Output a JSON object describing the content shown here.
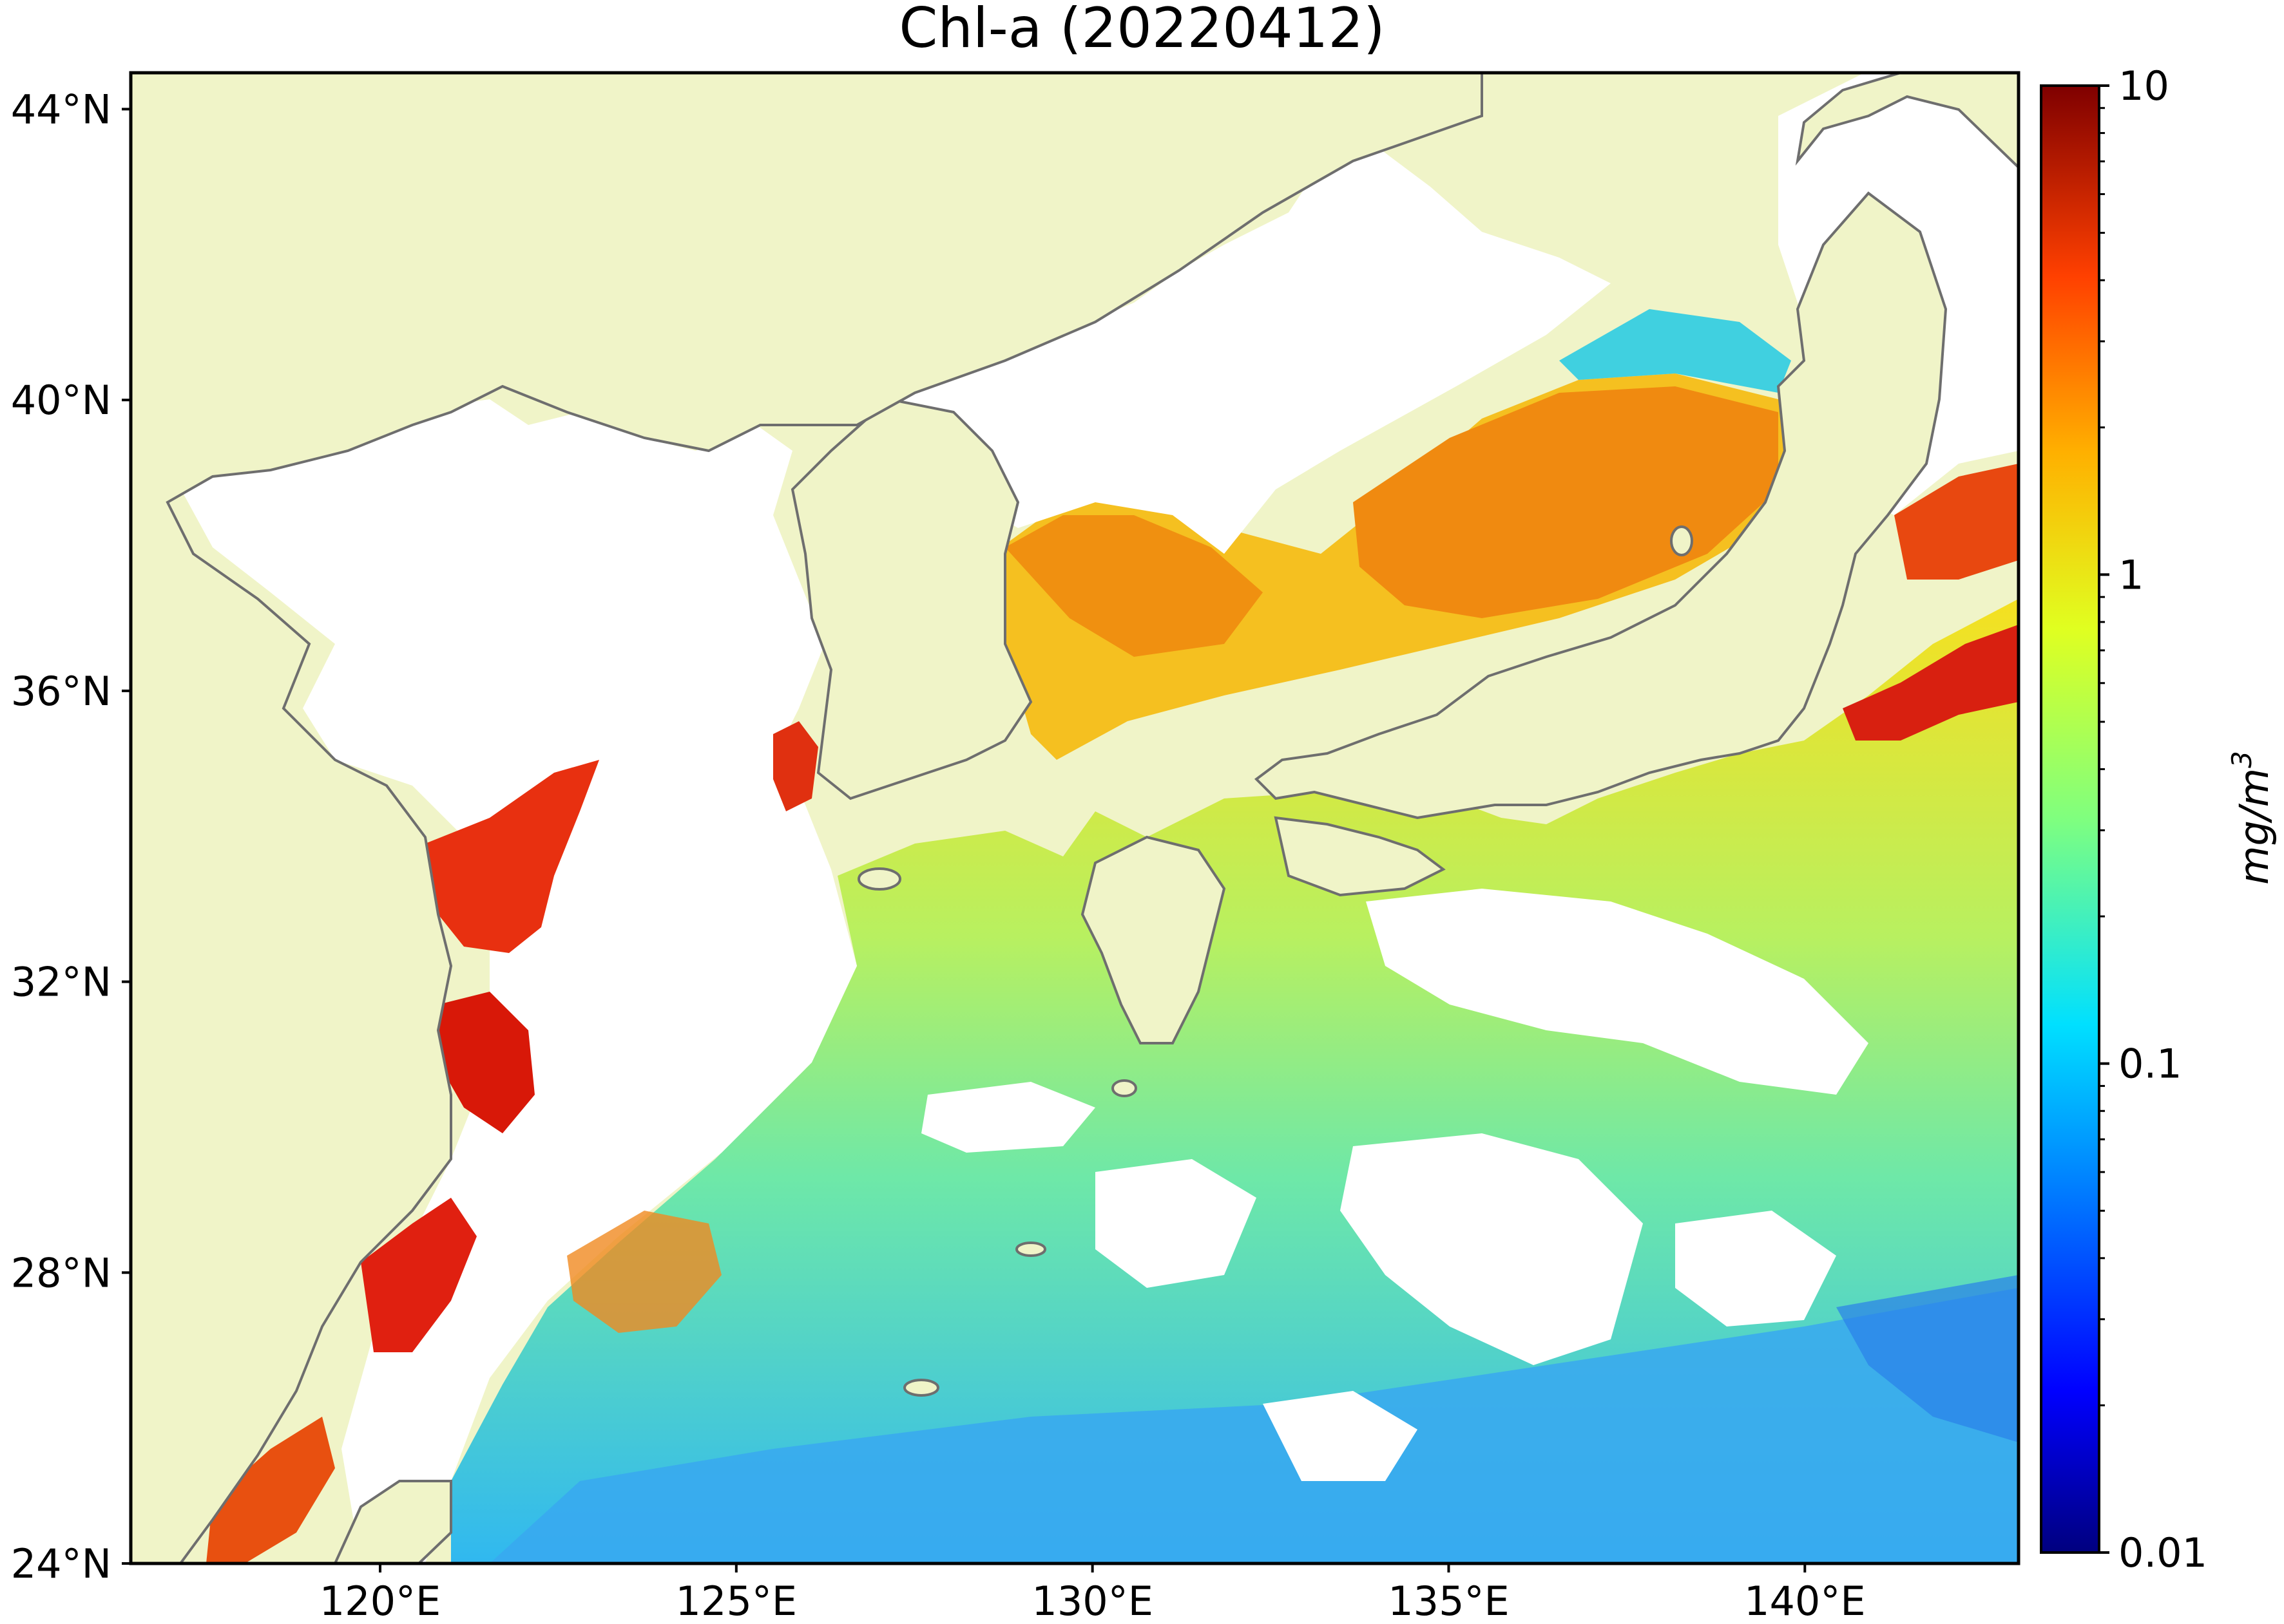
{
  "title": "Chl-a (20220412)",
  "map": {
    "lon_range": [
      116.5,
      143.0
    ],
    "lat_range": [
      24.0,
      44.5
    ],
    "lat_ticks": [
      {
        "value": 44,
        "label": "44°N"
      },
      {
        "value": 40,
        "label": "40°N"
      },
      {
        "value": 36,
        "label": "36°N"
      },
      {
        "value": 32,
        "label": "32°N"
      },
      {
        "value": 28,
        "label": "28°N"
      },
      {
        "value": 24,
        "label": "24°N"
      }
    ],
    "lon_ticks": [
      {
        "value": 120,
        "label": "120°E"
      },
      {
        "value": 125,
        "label": "125°E"
      },
      {
        "value": 130,
        "label": "130°E"
      },
      {
        "value": 135,
        "label": "135°E"
      },
      {
        "value": 140,
        "label": "140°E"
      }
    ]
  },
  "colorbar": {
    "scale": "log",
    "range": [
      0.01,
      10
    ],
    "ticks": [
      {
        "value": 10,
        "label": "10"
      },
      {
        "value": 1,
        "label": "1"
      },
      {
        "value": 0.1,
        "label": "0.1"
      },
      {
        "value": 0.01,
        "label": "0.01"
      }
    ],
    "unit": "mg/m",
    "unit_exponent": "3",
    "colormap": [
      "#00007f",
      "#0000ff",
      "#007fff",
      "#00e0ff",
      "#7fff7f",
      "#e0ff20",
      "#ffb000",
      "#ff4000",
      "#c00000",
      "#7f0000"
    ]
  },
  "colors": {
    "land": "#f0f4c8",
    "no_data": "#ffffff",
    "coastline": "#6e6e6e"
  }
}
